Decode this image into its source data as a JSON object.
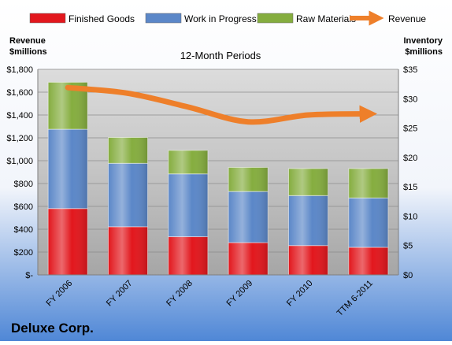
{
  "chart_data": {
    "type": "bar",
    "stacked": true,
    "title": "12-Month Periods",
    "company": "Deluxe Corp.",
    "left_axis_label": [
      "Revenue",
      "$millions"
    ],
    "right_axis_label": [
      "Inventory",
      "$millions"
    ],
    "categories": [
      "FY 2006",
      "FY 2007",
      "FY 2008",
      "FY 2009",
      "FY 2010",
      "TTM 6-2011"
    ],
    "series": [
      {
        "name": "Finished Goods",
        "axis": "right",
        "color": "#e2171d",
        "values": [
          11.3,
          8.2,
          6.5,
          5.5,
          5.0,
          4.7
        ]
      },
      {
        "name": "Work in Progress",
        "axis": "right",
        "color": "#5b87c8",
        "values": [
          13.5,
          10.8,
          10.7,
          8.7,
          8.5,
          8.4
        ]
      },
      {
        "name": "Raw Materials",
        "axis": "right",
        "color": "#85ad3f",
        "values": [
          8.0,
          4.4,
          4.0,
          4.1,
          4.6,
          5.0
        ]
      }
    ],
    "revenue_series": {
      "name": "Revenue",
      "axis": "left",
      "color": "#ee7f2a",
      "values": [
        1640,
        1590,
        1470,
        1340,
        1400,
        1410
      ]
    },
    "left_axis": {
      "min": 0,
      "max": 1800,
      "step": 200,
      "ticks": [
        "$-",
        "$200",
        "$400",
        "$600",
        "$800",
        "$1,000",
        "$1,200",
        "$1,400",
        "$1,600",
        "$1,800"
      ]
    },
    "right_axis": {
      "min": 0,
      "max": 35,
      "step": 5,
      "ticks": [
        "$0",
        "$5",
        "$10",
        "$15",
        "$20",
        "$25",
        "$30",
        "$35"
      ]
    },
    "legend_position": "top",
    "grid": true
  }
}
